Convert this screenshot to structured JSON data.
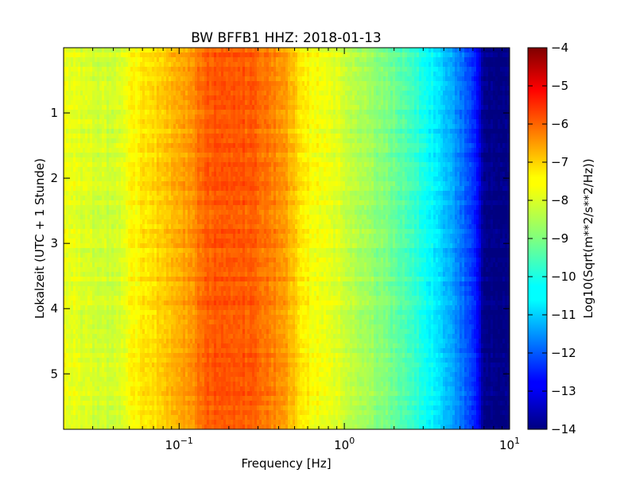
{
  "chart_data": {
    "type": "heatmap",
    "title": "BW BFFB1 HHZ: 2018-01-13",
    "xlabel": "Frequency [Hz]",
    "ylabel": "Lokalzeit (UTC + 1 Stunde)",
    "xscale": "log",
    "xlim": [
      0.02,
      10
    ],
    "ylim": [
      5.85,
      0
    ],
    "x_ticks": [
      {
        "value": 0.1,
        "base": "10",
        "exp": "−1"
      },
      {
        "value": 1,
        "base": "10",
        "exp": "0"
      },
      {
        "value": 10,
        "base": "10",
        "exp": "1"
      }
    ],
    "y_ticks": [
      {
        "value": 1,
        "label": "1"
      },
      {
        "value": 2,
        "label": "2"
      },
      {
        "value": 3,
        "label": "3"
      },
      {
        "value": 4,
        "label": "4"
      },
      {
        "value": 5,
        "label": "5"
      }
    ],
    "colorbar": {
      "label": "Log10(Sqrt(m**2/s**2/Hz))",
      "colormap": "jet",
      "range": [
        -14,
        -4
      ],
      "ticks": [
        {
          "value": -4,
          "label": "−4"
        },
        {
          "value": -5,
          "label": "−5"
        },
        {
          "value": -6,
          "label": "−6"
        },
        {
          "value": -7,
          "label": "−7"
        },
        {
          "value": -8,
          "label": "−8"
        },
        {
          "value": -9,
          "label": "−9"
        },
        {
          "value": -10,
          "label": "−10"
        },
        {
          "value": -11,
          "label": "−11"
        },
        {
          "value": -12,
          "label": "−12"
        },
        {
          "value": -13,
          "label": "−13"
        },
        {
          "value": -14,
          "label": "−14"
        }
      ]
    },
    "frequency_profile": {
      "frequencies": [
        0.02,
        0.04,
        0.06,
        0.085,
        0.12,
        0.14,
        0.2,
        0.28,
        0.4,
        0.5,
        0.6,
        0.8,
        1.0,
        1.2,
        1.5,
        2.0,
        2.5,
        3.0,
        3.5,
        4.0,
        5.0,
        6.0,
        6.5,
        7.0,
        8.0,
        10.0
      ],
      "values": [
        -7.9,
        -8.3,
        -7.5,
        -7.2,
        -6.7,
        -6.2,
        -6.0,
        -6.2,
        -6.6,
        -7.2,
        -7.7,
        -8.0,
        -8.2,
        -8.5,
        -8.8,
        -9.2,
        -9.6,
        -10.0,
        -10.4,
        -10.8,
        -11.5,
        -12.3,
        -13.0,
        -13.9,
        -14.0,
        -14.0
      ]
    }
  }
}
